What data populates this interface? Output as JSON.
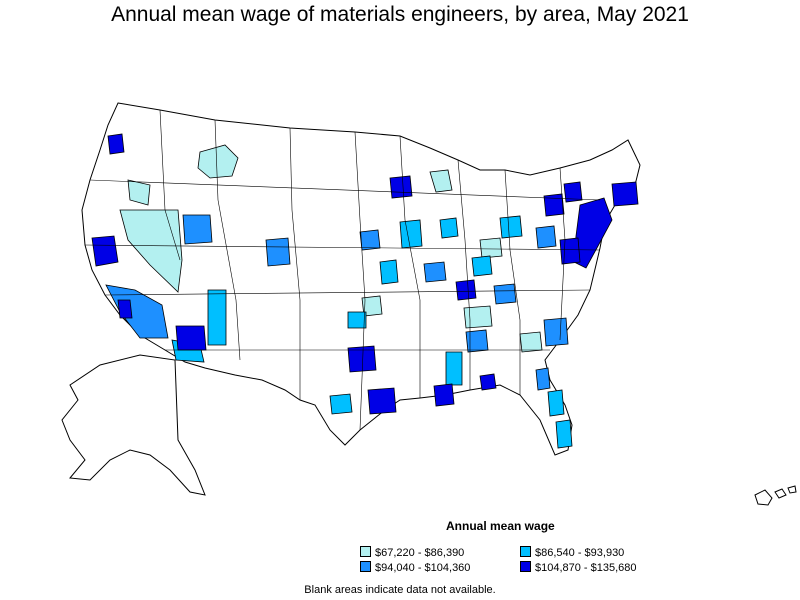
{
  "title": "Annual mean wage of materials engineers, by area, May 2021",
  "legend": {
    "title": "Annual mean wage",
    "items": [
      {
        "label": "$67,220 - $86,390",
        "color": "#b3f0f0"
      },
      {
        "label": "$86,540 - $93,930",
        "color": "#00bfff"
      },
      {
        "label": "$94,040 - $104,360",
        "color": "#1e90ff"
      },
      {
        "label": "$104,870 - $135,680",
        "color": "#0000e6"
      }
    ]
  },
  "footnote": "Blank areas indicate data not available."
}
